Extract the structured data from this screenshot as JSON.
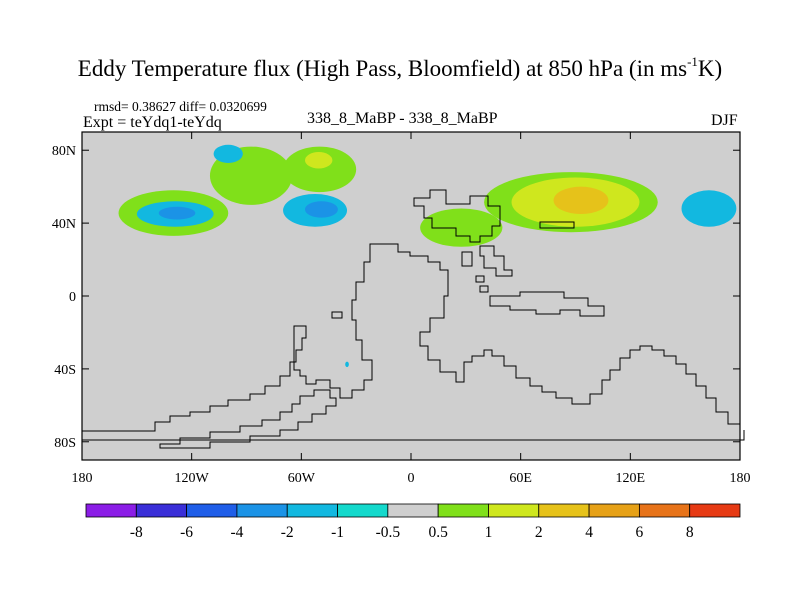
{
  "chart_data": {
    "type": "heatmap",
    "title_main": "Eddy Temperature flux (High Pass, Bloomfield) at 850 hPa (in ms",
    "title_sup": "-1",
    "title_end": "K)",
    "stats_line": "rmsd= 0.38627 diff= 0.0320699",
    "expt_line": "Expt = teYdq1-teYdq",
    "center_label": "338_8_MaBP - 338_8_MaBP",
    "season_label": "DJF",
    "x_ticks": [
      "180",
      "120W",
      "60W",
      "0",
      "60E",
      "120E",
      "180"
    ],
    "y_ticks": [
      "80N",
      "40N",
      "0",
      "40S",
      "80S"
    ],
    "xlim": [
      -180,
      180
    ],
    "ylim": [
      -90,
      90
    ],
    "colorbar": {
      "labels": [
        "-8",
        "-6",
        "-4",
        "-2",
        "-1",
        "-0.5",
        "0.5",
        "1",
        "2",
        "4",
        "6",
        "8"
      ],
      "colors": [
        "#8b1de6",
        "#3a2fd8",
        "#1f5ee8",
        "#1b93e6",
        "#12b8e0",
        "#14d9cc",
        "#cfcfcf",
        "#80e01a",
        "#cfe71e",
        "#e6c21a",
        "#e6a117",
        "#e77319",
        "#e63a14"
      ]
    },
    "anomaly_regions": [
      {
        "level": "1",
        "lon": [
          -160,
          -100
        ],
        "lat": [
          33,
          58
        ]
      },
      {
        "level": "1",
        "lon": [
          -110,
          -65
        ],
        "lat": [
          50,
          82
        ]
      },
      {
        "level": "1",
        "lon": [
          -70,
          -30
        ],
        "lat": [
          57,
          82
        ]
      },
      {
        "level": "2",
        "lon": [
          -58,
          -43
        ],
        "lat": [
          70,
          79
        ]
      },
      {
        "level": "-1",
        "lon": [
          -150,
          -108
        ],
        "lat": [
          38,
          52
        ]
      },
      {
        "level": "-2",
        "lon": [
          -138,
          -118
        ],
        "lat": [
          42,
          49
        ]
      },
      {
        "level": "-1",
        "lon": [
          -70,
          -35
        ],
        "lat": [
          38,
          56
        ]
      },
      {
        "level": "-2",
        "lon": [
          -58,
          -40
        ],
        "lat": [
          43,
          52
        ]
      },
      {
        "level": "-1",
        "lon": [
          -108,
          -92
        ],
        "lat": [
          73,
          83
        ]
      },
      {
        "level": "1",
        "lon": [
          5,
          50
        ],
        "lat": [
          27,
          48
        ]
      },
      {
        "level": "1",
        "lon": [
          40,
          135
        ],
        "lat": [
          35,
          68
        ]
      },
      {
        "level": "2",
        "lon": [
          55,
          125
        ],
        "lat": [
          38,
          65
        ]
      },
      {
        "level": "4",
        "lon": [
          78,
          108
        ],
        "lat": [
          45,
          60
        ]
      },
      {
        "level": "-1",
        "lon": [
          148,
          178
        ],
        "lat": [
          38,
          58
        ]
      },
      {
        "level": "-1",
        "lon": [
          -36,
          -34
        ],
        "lat": [
          -39,
          -36
        ]
      }
    ]
  }
}
